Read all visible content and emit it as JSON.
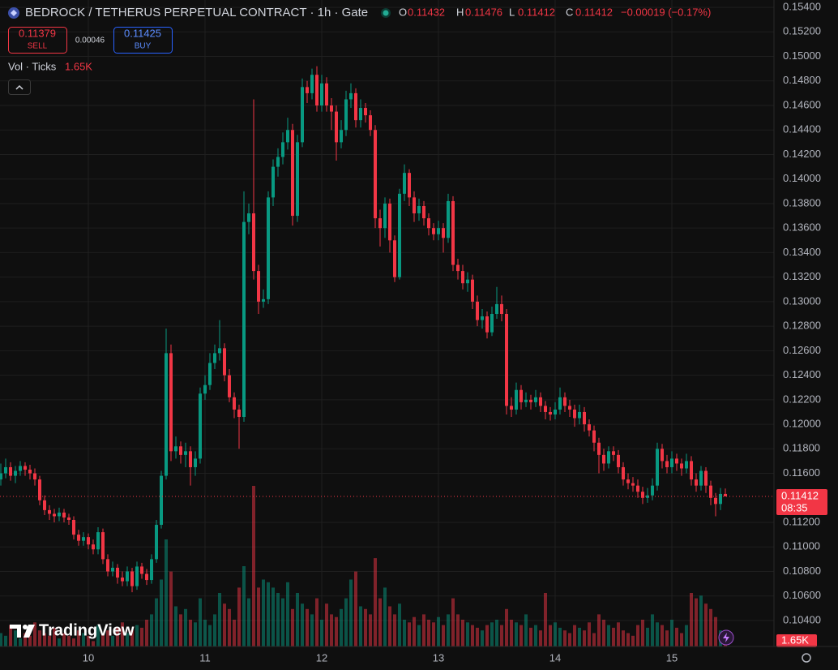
{
  "chart_data": {
    "type": "candlestick",
    "header": {
      "title": "BEDROCK / TETHERUS PERPETUAL CONTRACT · 1h · Gate",
      "o": "O",
      "h": "H",
      "l": "L",
      "c": "C",
      "change": "−0.00019 (−0.17%)",
      "sell_price": 0.11379,
      "sell": "SELL",
      "spread": 0.00046,
      "buy_price": 0.11425,
      "buy": "BUY",
      "volume_legend": "Vol · Ticks",
      "countdown": "08:35",
      "brand": "TradingView"
    },
    "up_color": "#089981",
    "down_color": "#f23645",
    "xlim": [
      0,
      159
    ],
    "xticks": [
      {
        "value": 18,
        "label": "10"
      },
      {
        "value": 42,
        "label": "11"
      },
      {
        "value": 66,
        "label": "12"
      },
      {
        "value": 90,
        "label": "13"
      },
      {
        "value": 114,
        "label": "14"
      },
      {
        "value": 138,
        "label": "15"
      }
    ],
    "ylim": [
      0.10188,
      0.1546
    ],
    "yticks": [
      {
        "value": 0.154,
        "label": "0.15400"
      },
      {
        "value": 0.152,
        "label": "0.15200"
      },
      {
        "value": 0.15,
        "label": "0.15000"
      },
      {
        "value": 0.148,
        "label": "0.14800"
      },
      {
        "value": 0.146,
        "label": "0.14600"
      },
      {
        "value": 0.144,
        "label": "0.14400"
      },
      {
        "value": 0.142,
        "label": "0.14200"
      },
      {
        "value": 0.14,
        "label": "0.14000"
      },
      {
        "value": 0.138,
        "label": "0.13800"
      },
      {
        "value": 0.136,
        "label": "0.13600"
      },
      {
        "value": 0.134,
        "label": "0.13400"
      },
      {
        "value": 0.132,
        "label": "0.13200"
      },
      {
        "value": 0.13,
        "label": "0.13000"
      },
      {
        "value": 0.128,
        "label": "0.12800"
      },
      {
        "value": 0.126,
        "label": "0.12600"
      },
      {
        "value": 0.124,
        "label": "0.12400"
      },
      {
        "value": 0.122,
        "label": "0.12200"
      },
      {
        "value": 0.12,
        "label": "0.12000"
      },
      {
        "value": 0.118,
        "label": "0.11800"
      },
      {
        "value": 0.116,
        "label": "0.11600"
      },
      {
        "value": 0.112,
        "label": "0.11200"
      },
      {
        "value": 0.11,
        "label": "0.11000"
      },
      {
        "value": 0.108,
        "label": "0.10800"
      },
      {
        "value": 0.106,
        "label": "0.10600"
      },
      {
        "value": 0.104,
        "label": "0.10400"
      }
    ],
    "grid": true,
    "open": [
      0.1155,
      0.116,
      0.1165,
      0.1158,
      0.1162,
      0.1166,
      0.1163,
      0.116,
      0.1155,
      0.1138,
      0.113,
      0.1127,
      0.1125,
      0.1128,
      0.1124,
      0.1122,
      0.111,
      0.1105,
      0.1108,
      0.1102,
      0.1098,
      0.1112,
      0.109,
      0.108,
      0.1083,
      0.1075,
      0.1072,
      0.108,
      0.1068,
      0.1084,
      0.1078,
      0.1073,
      0.109,
      0.1118,
      0.1158,
      0.1258,
      0.1178,
      0.1182,
      0.1175,
      0.1178,
      0.1165,
      0.1172,
      0.1225,
      0.1232,
      0.125,
      0.1258,
      0.1262,
      0.124,
      0.1222,
      0.1212,
      0.1206,
      0.1365,
      0.1372,
      0.1325,
      0.13,
      0.1302,
      0.1385,
      0.141,
      0.1418,
      0.143,
      0.144,
      0.137,
      0.143,
      0.1475,
      0.147,
      0.1485,
      0.146,
      0.1478,
      0.146,
      0.1455,
      0.143,
      0.144,
      0.1465,
      0.147,
      0.1448,
      0.1458,
      0.1452,
      0.144,
      0.1368,
      0.136,
      0.138,
      0.135,
      0.132,
      0.1388,
      0.1405,
      0.1385,
      0.1372,
      0.1378,
      0.1368,
      0.136,
      0.1355,
      0.136,
      0.1352,
      0.1382,
      0.133,
      0.1325,
      0.1315,
      0.1318,
      0.13,
      0.1285,
      0.1288,
      0.1275,
      0.129,
      0.1298,
      0.129,
      0.1215,
      0.1212,
      0.1228,
      0.1218,
      0.122,
      0.1218,
      0.1222,
      0.1215,
      0.121,
      0.1208,
      0.1212,
      0.1222,
      0.1215,
      0.1212,
      0.1205,
      0.121,
      0.12,
      0.1195,
      0.1185,
      0.1175,
      0.1168,
      0.1178,
      0.1175,
      0.1165,
      0.1155,
      0.1152,
      0.115,
      0.1145,
      0.114,
      0.1142,
      0.115,
      0.118,
      0.117,
      0.1165,
      0.1172,
      0.1168,
      0.1164,
      0.117,
      0.1155,
      0.115,
      0.1162,
      0.115,
      0.114,
      0.1135,
      0.11432
    ],
    "high": [
      0.1168,
      0.1172,
      0.1169,
      0.1166,
      0.117,
      0.1169,
      0.1167,
      0.1164,
      0.1158,
      0.1142,
      0.1134,
      0.1131,
      0.1132,
      0.1131,
      0.1127,
      0.1125,
      0.1114,
      0.1112,
      0.1111,
      0.1106,
      0.1116,
      0.1115,
      0.1094,
      0.1088,
      0.1086,
      0.108,
      0.1084,
      0.1083,
      0.1088,
      0.1087,
      0.1082,
      0.1094,
      0.1122,
      0.1162,
      0.1278,
      0.1265,
      0.119,
      0.1186,
      0.1185,
      0.1182,
      0.1178,
      0.123,
      0.124,
      0.1258,
      0.1265,
      0.1285,
      0.1266,
      0.1245,
      0.1226,
      0.1216,
      0.139,
      0.138,
      0.1465,
      0.133,
      0.131,
      0.139,
      0.1416,
      0.1425,
      0.1438,
      0.145,
      0.1445,
      0.1436,
      0.1482,
      0.148,
      0.149,
      0.1492,
      0.1485,
      0.1483,
      0.1466,
      0.146,
      0.1448,
      0.1472,
      0.1478,
      0.1474,
      0.1465,
      0.1462,
      0.1456,
      0.1444,
      0.1375,
      0.1385,
      0.1384,
      0.1354,
      0.1392,
      0.1412,
      0.1408,
      0.139,
      0.1384,
      0.1382,
      0.1372,
      0.1364,
      0.1366,
      0.1364,
      0.1388,
      0.1386,
      0.1335,
      0.133,
      0.1324,
      0.1322,
      0.1305,
      0.1294,
      0.1292,
      0.1296,
      0.1312,
      0.1305,
      0.1294,
      0.1222,
      0.1234,
      0.1232,
      0.1226,
      0.1224,
      0.1228,
      0.1226,
      0.1219,
      0.1214,
      0.1218,
      0.123,
      0.1226,
      0.122,
      0.1216,
      0.1216,
      0.1214,
      0.1204,
      0.1199,
      0.1189,
      0.118,
      0.1182,
      0.1182,
      0.1179,
      0.1169,
      0.116,
      0.1157,
      0.1155,
      0.1149,
      0.1148,
      0.1156,
      0.1185,
      0.1184,
      0.1175,
      0.1178,
      0.1176,
      0.1172,
      0.1176,
      0.1174,
      0.116,
      0.1166,
      0.1165,
      0.1154,
      0.1144,
      0.1148,
      0.11476
    ],
    "low": [
      0.115,
      0.1156,
      0.1154,
      0.1152,
      0.1158,
      0.1158,
      0.1155,
      0.115,
      0.1134,
      0.1126,
      0.1122,
      0.112,
      0.1121,
      0.112,
      0.1118,
      0.1106,
      0.1101,
      0.1101,
      0.1098,
      0.1094,
      0.1094,
      0.1086,
      0.1076,
      0.1076,
      0.107,
      0.1068,
      0.1068,
      0.1063,
      0.1065,
      0.1074,
      0.1069,
      0.107,
      0.1087,
      0.1115,
      0.1155,
      0.117,
      0.1172,
      0.1168,
      0.1165,
      0.115,
      0.1158,
      0.1168,
      0.122,
      0.1228,
      0.1245,
      0.1252,
      0.1235,
      0.1218,
      0.1205,
      0.118,
      0.1202,
      0.1355,
      0.1318,
      0.129,
      0.1295,
      0.1298,
      0.1378,
      0.1402,
      0.1412,
      0.1424,
      0.1362,
      0.1365,
      0.1426,
      0.1462,
      0.1465,
      0.1455,
      0.1455,
      0.1455,
      0.144,
      0.1415,
      0.1425,
      0.1435,
      0.1458,
      0.1442,
      0.1442,
      0.1446,
      0.1435,
      0.136,
      0.1345,
      0.1352,
      0.134,
      0.1316,
      0.1318,
      0.1382,
      0.1378,
      0.1365,
      0.1366,
      0.1362,
      0.1354,
      0.135,
      0.135,
      0.134,
      0.1348,
      0.1325,
      0.1318,
      0.131,
      0.1308,
      0.1294,
      0.128,
      0.1278,
      0.127,
      0.1272,
      0.1286,
      0.1284,
      0.1208,
      0.1206,
      0.1208,
      0.1212,
      0.1214,
      0.1212,
      0.1214,
      0.121,
      0.1204,
      0.1203,
      0.1204,
      0.1208,
      0.121,
      0.1206,
      0.1198,
      0.12,
      0.1194,
      0.119,
      0.1178,
      0.116,
      0.1162,
      0.1164,
      0.117,
      0.116,
      0.115,
      0.1147,
      0.1145,
      0.114,
      0.1135,
      0.1136,
      0.1138,
      0.1146,
      0.1164,
      0.116,
      0.116,
      0.1162,
      0.1158,
      0.116,
      0.115,
      0.1145,
      0.1146,
      0.1144,
      0.1134,
      0.1125,
      0.113,
      0.11412
    ],
    "close": [
      0.116,
      0.1165,
      0.1158,
      0.1162,
      0.1166,
      0.1163,
      0.116,
      0.1155,
      0.1138,
      0.113,
      0.1127,
      0.1125,
      0.1128,
      0.1124,
      0.1122,
      0.111,
      0.1105,
      0.1108,
      0.1102,
      0.1098,
      0.1112,
      0.109,
      0.108,
      0.1083,
      0.1075,
      0.1072,
      0.108,
      0.1068,
      0.1084,
      0.1078,
      0.1073,
      0.109,
      0.1118,
      0.1158,
      0.1258,
      0.1178,
      0.1182,
      0.1175,
      0.1178,
      0.1165,
      0.1172,
      0.1225,
      0.1232,
      0.125,
      0.1258,
      0.1262,
      0.124,
      0.1222,
      0.1212,
      0.1206,
      0.1365,
      0.1372,
      0.1325,
      0.13,
      0.1302,
      0.1385,
      0.141,
      0.1418,
      0.143,
      0.144,
      0.137,
      0.143,
      0.1475,
      0.147,
      0.1485,
      0.146,
      0.1478,
      0.146,
      0.1455,
      0.143,
      0.144,
      0.1465,
      0.147,
      0.1448,
      0.1458,
      0.1452,
      0.144,
      0.1368,
      0.136,
      0.138,
      0.135,
      0.132,
      0.1388,
      0.1405,
      0.1385,
      0.1372,
      0.1378,
      0.1368,
      0.136,
      0.1355,
      0.136,
      0.1352,
      0.1382,
      0.133,
      0.1325,
      0.1315,
      0.1318,
      0.13,
      0.1285,
      0.1288,
      0.1275,
      0.129,
      0.1298,
      0.129,
      0.1215,
      0.1212,
      0.1228,
      0.1218,
      0.122,
      0.1218,
      0.1222,
      0.1215,
      0.121,
      0.1208,
      0.1212,
      0.1222,
      0.1215,
      0.1212,
      0.1205,
      0.121,
      0.12,
      0.1195,
      0.1185,
      0.1175,
      0.1168,
      0.1178,
      0.1175,
      0.1165,
      0.1155,
      0.1152,
      0.115,
      0.1145,
      0.114,
      0.1142,
      0.115,
      0.118,
      0.117,
      0.1165,
      0.1172,
      0.1168,
      0.1164,
      0.117,
      0.1155,
      0.115,
      0.1162,
      0.115,
      0.114,
      0.1135,
      0.11432,
      0.11412
    ],
    "volume": {
      "lim": [
        0,
        100
      ],
      "current_label": "1.65K",
      "values": [
        5,
        4,
        8,
        6,
        3,
        5,
        4,
        9,
        6,
        5,
        4,
        7,
        3,
        5,
        4,
        3,
        6,
        5,
        4,
        2,
        8,
        5,
        6,
        4,
        7,
        9,
        5,
        6,
        8,
        7,
        10,
        12,
        18,
        25,
        40,
        28,
        15,
        12,
        14,
        10,
        9,
        18,
        10,
        8,
        12,
        20,
        16,
        14,
        10,
        22,
        30,
        18,
        60,
        22,
        25,
        24,
        22,
        20,
        18,
        24,
        14,
        20,
        16,
        14,
        12,
        18,
        10,
        16,
        12,
        11,
        14,
        18,
        25,
        28,
        15,
        14,
        12,
        33,
        18,
        22,
        15,
        12,
        16,
        10,
        9,
        11,
        8,
        12,
        10,
        9,
        11,
        8,
        12,
        18,
        12,
        10,
        9,
        8,
        7,
        6,
        8,
        9,
        10,
        8,
        14,
        10,
        9,
        8,
        12,
        7,
        8,
        6,
        20,
        8,
        9,
        7,
        6,
        5,
        8,
        7,
        6,
        9,
        5,
        12,
        10,
        8,
        7,
        9,
        6,
        5,
        4,
        8,
        10,
        7,
        12,
        9,
        8,
        6,
        10,
        7,
        5,
        8,
        20,
        18,
        19,
        16,
        14,
        11,
        6,
        1.65
      ]
    }
  }
}
